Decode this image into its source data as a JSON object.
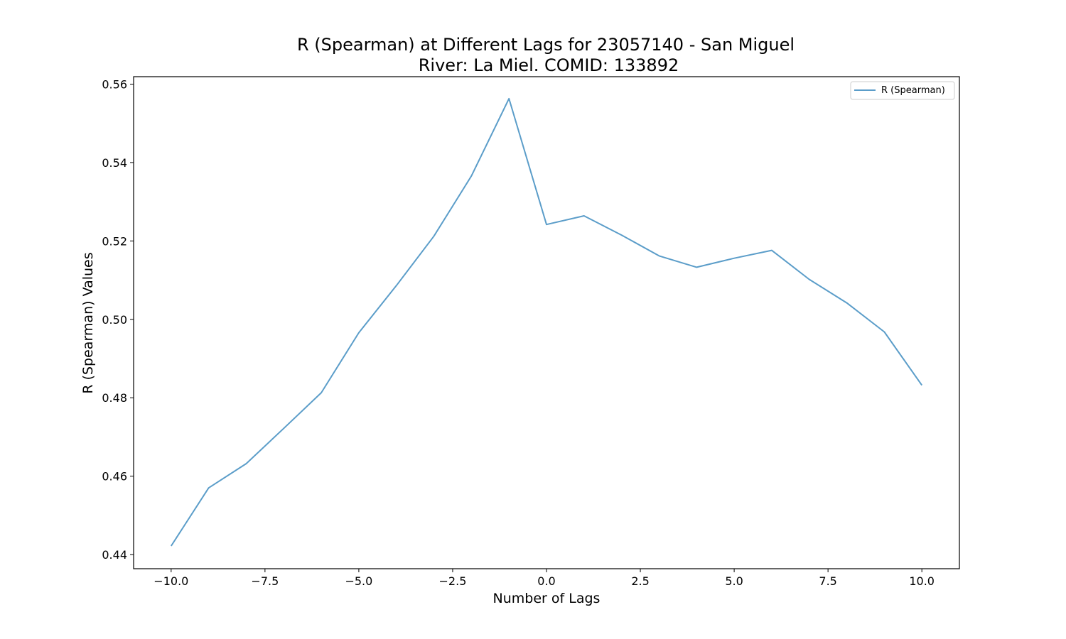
{
  "chart_data": {
    "type": "line",
    "title_line1": "R (Spearman) at Different Lags for 23057140 - San Miguel",
    "title_line2": "River: La Miel. COMID: 133892",
    "xlabel": "Number of Lags",
    "ylabel": "R (Spearman) Values",
    "xlim": [
      -11,
      11
    ],
    "ylim": [
      0.4364,
      0.5619
    ],
    "x_ticks": [
      -10.0,
      -7.5,
      -5.0,
      -2.5,
      0.0,
      2.5,
      5.0,
      7.5,
      10.0
    ],
    "x_tick_labels": [
      "−10.0",
      "−7.5",
      "−5.0",
      "−2.5",
      "0.0",
      "2.5",
      "5.0",
      "7.5",
      "10.0"
    ],
    "y_ticks": [
      0.44,
      0.46,
      0.48,
      0.5,
      0.52,
      0.54,
      0.56
    ],
    "y_tick_labels": [
      "0.44",
      "0.46",
      "0.48",
      "0.50",
      "0.52",
      "0.54",
      "0.56"
    ],
    "grid": false,
    "legend_position": "top-right",
    "series": [
      {
        "name": "R (Spearman)",
        "color": "#5b9dc9",
        "x": [
          -10,
          -9,
          -8,
          -7,
          -6,
          -5,
          -4,
          -3,
          -2,
          -1,
          0,
          1,
          2,
          3,
          4,
          5,
          6,
          7,
          8,
          9,
          10
        ],
        "values": [
          0.4422,
          0.457,
          0.4632,
          0.4722,
          0.4813,
          0.4966,
          0.5086,
          0.5212,
          0.5366,
          0.5563,
          0.5242,
          0.5264,
          0.5215,
          0.5162,
          0.5133,
          0.5156,
          0.5176,
          0.5102,
          0.5042,
          0.4968,
          0.4832
        ]
      }
    ]
  }
}
